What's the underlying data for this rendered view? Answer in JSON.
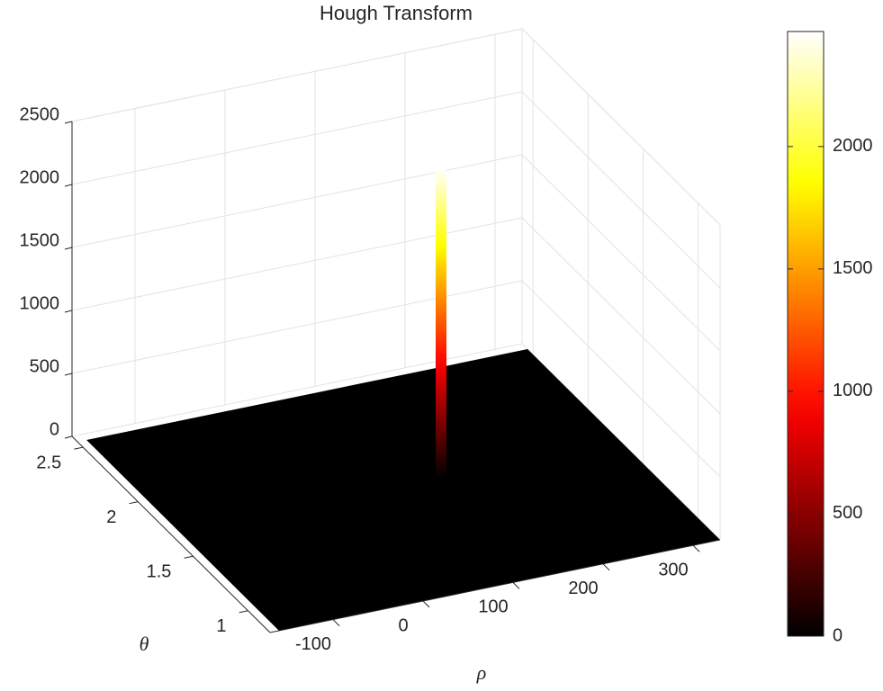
{
  "chart_data": {
    "type": "surface",
    "title": "Hough Transform",
    "xlabel": "ρ",
    "ylabel": "θ",
    "xlim": [
      -170,
      330
    ],
    "xticks": [
      -100,
      0,
      100,
      200,
      300
    ],
    "ylim": [
      0.8,
      2.6
    ],
    "yticks": [
      1,
      1.5,
      2,
      2.5
    ],
    "zlim": [
      0,
      2500
    ],
    "zticks": [
      0,
      500,
      1000,
      1500,
      2000,
      2500
    ],
    "grid": true,
    "colormap": "hot",
    "peak": {
      "rho": 130,
      "theta": 1.7,
      "value": 2470
    },
    "colorbar": {
      "clim": [
        0,
        2470
      ],
      "ticks": [
        0,
        500,
        1000,
        1500,
        2000
      ]
    }
  }
}
